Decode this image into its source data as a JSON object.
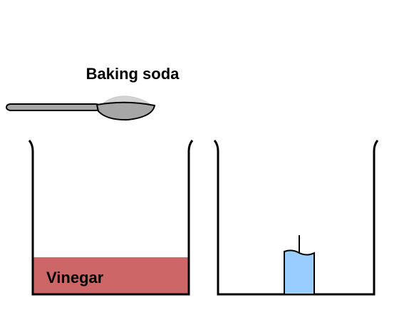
{
  "labels": {
    "baking_soda": "Baking soda",
    "vinegar": "Vinegar"
  },
  "colors": {
    "vinegar_fill": "#cd6767",
    "candle_fill": "#99ccff",
    "spoon_fill": "#a6a6a6",
    "powder_fill": "#d3d3d3",
    "outline": "#000000",
    "background": "#ffffff"
  },
  "icons": {
    "spoon": "spoon-icon",
    "beaker": "beaker-icon",
    "candle": "candle-icon"
  }
}
